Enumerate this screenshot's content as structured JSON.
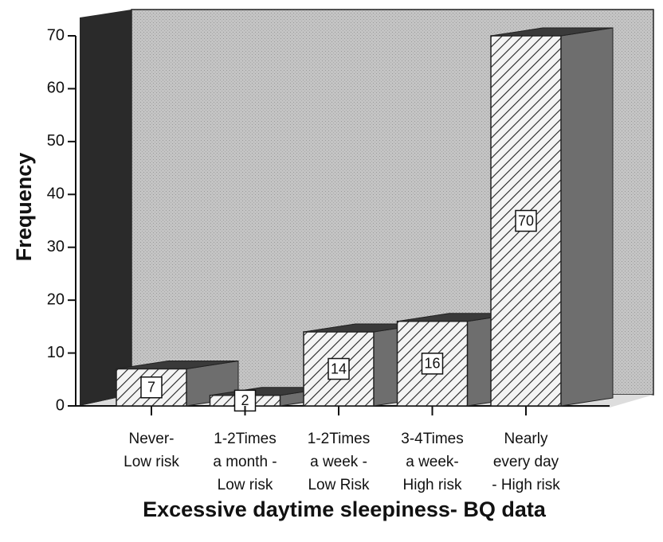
{
  "chart_data": {
    "type": "bar3d",
    "title": "Excessive daytime sleepiness- BQ data",
    "y_label": "Frequency",
    "categories": [
      [
        "Never-",
        "Low risk"
      ],
      [
        "1-2Times",
        "a month -",
        "Low risk"
      ],
      [
        "1-2Times",
        "a week -",
        "Low Risk"
      ],
      [
        "3-4Times",
        "a week-",
        "High risk"
      ],
      [
        "Nearly",
        "every day",
        "- High risk"
      ]
    ],
    "values": [
      7,
      2,
      14,
      16,
      70
    ],
    "ylim": [
      0,
      70
    ],
    "yticks": [
      0,
      10,
      20,
      30,
      40,
      50,
      60,
      70
    ]
  }
}
